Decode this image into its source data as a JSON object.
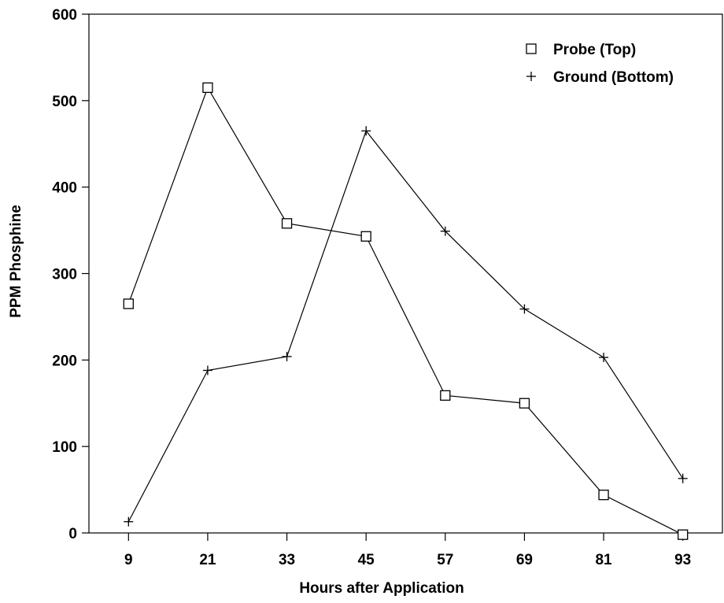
{
  "chart_data": {
    "type": "line",
    "xlabel": "Hours after Application",
    "ylabel": "PPM Phosphine",
    "x": [
      9,
      21,
      33,
      45,
      57,
      69,
      81,
      93
    ],
    "xlim": [
      3,
      99
    ],
    "ylim": [
      0,
      600
    ],
    "yticks": [
      0,
      100,
      200,
      300,
      400,
      500,
      600
    ],
    "grid": false,
    "legend_position": "top-right",
    "series": [
      {
        "name": "Probe (Top)",
        "marker": "square",
        "color": "#000000",
        "values": [
          265,
          515,
          358,
          343,
          159,
          150,
          44,
          -2
        ]
      },
      {
        "name": "Ground (Bottom)",
        "marker": "plus",
        "color": "#000000",
        "values": [
          13,
          188,
          204,
          465,
          349,
          259,
          203,
          63
        ]
      }
    ]
  }
}
